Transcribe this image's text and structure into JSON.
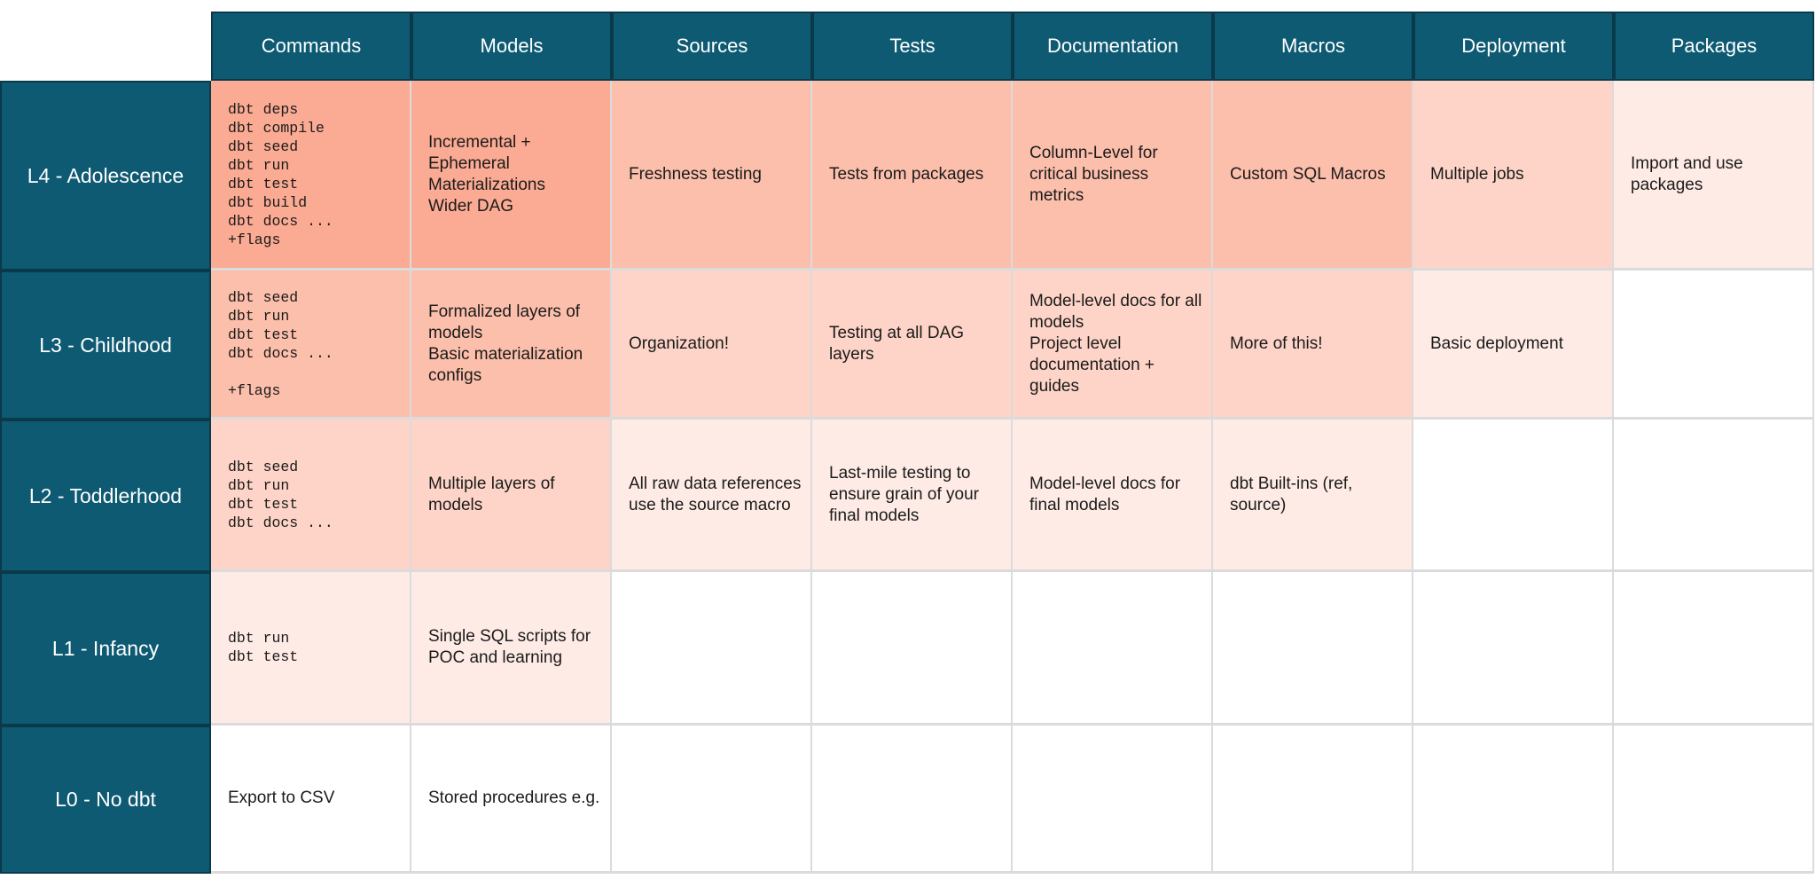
{
  "colors": {
    "header_bg": "#0E5A73",
    "header_border": "#0A3A4A",
    "grid_line": "#DBDBDB",
    "header_text": "#FFFFFF",
    "body_text": "#1B1B1B",
    "shades": [
      "#FBAB93",
      "#FCBFAB",
      "#FDD4C7",
      "#FEEBE5",
      "#FFFFFF"
    ]
  },
  "table": {
    "columns": [
      "Commands",
      "Models",
      "Sources",
      "Tests",
      "Documentation",
      "Macros",
      "Deployment",
      "Packages"
    ],
    "rows": [
      {
        "label": "L4 - Adolescence",
        "cells": [
          {
            "column": "Commands",
            "mono": true,
            "shade": 0,
            "text": "dbt deps\ndbt compile\ndbt seed\ndbt run\ndbt test\ndbt build\ndbt docs ...\n+flags"
          },
          {
            "column": "Models",
            "shade": 0,
            "text": "Incremental +\nEphemeral\nMaterializations\nWider DAG"
          },
          {
            "column": "Sources",
            "shade": 1,
            "text": "Freshness testing"
          },
          {
            "column": "Tests",
            "shade": 1,
            "text": "Tests from packages"
          },
          {
            "column": "Documentation",
            "shade": 1,
            "text": "Column-Level for critical business metrics"
          },
          {
            "column": "Macros",
            "shade": 1,
            "text": "Custom SQL Macros"
          },
          {
            "column": "Deployment",
            "shade": 2,
            "text": "Multiple jobs"
          },
          {
            "column": "Packages",
            "shade": 3,
            "text": "Import and use packages"
          }
        ]
      },
      {
        "label": "L3 - Childhood",
        "cells": [
          {
            "column": "Commands",
            "mono": true,
            "shade": 1,
            "text": "dbt seed\ndbt run\ndbt test\ndbt docs ...\n\n+flags"
          },
          {
            "column": "Models",
            "shade": 1,
            "text": "Formalized layers of models\nBasic materialization configs"
          },
          {
            "column": "Sources",
            "shade": 2,
            "text": "Organization!"
          },
          {
            "column": "Tests",
            "shade": 2,
            "text": "Testing at all DAG layers"
          },
          {
            "column": "Documentation",
            "shade": 2,
            "text": "Model-level docs for all models\nProject level documentation + guides"
          },
          {
            "column": "Macros",
            "shade": 2,
            "text": "More of this!"
          },
          {
            "column": "Deployment",
            "shade": 3,
            "text": "Basic deployment"
          },
          {
            "column": "Packages",
            "shade": 4,
            "text": ""
          }
        ]
      },
      {
        "label": "L2 - Toddlerhood",
        "cells": [
          {
            "column": "Commands",
            "mono": true,
            "shade": 2,
            "text": "dbt seed\ndbt run\ndbt test\ndbt docs ..."
          },
          {
            "column": "Models",
            "shade": 2,
            "text": "Multiple layers of models"
          },
          {
            "column": "Sources",
            "shade": 3,
            "text": "All raw data references use the source macro"
          },
          {
            "column": "Tests",
            "shade": 3,
            "text": "Last-mile testing to ensure grain of your final models"
          },
          {
            "column": "Documentation",
            "shade": 3,
            "text": "Model-level docs for final models"
          },
          {
            "column": "Macros",
            "shade": 3,
            "text": "dbt Built-ins (ref, source)"
          },
          {
            "column": "Deployment",
            "shade": 4,
            "text": ""
          },
          {
            "column": "Packages",
            "shade": 4,
            "text": ""
          }
        ]
      },
      {
        "label": "L1 - Infancy",
        "cells": [
          {
            "column": "Commands",
            "mono": true,
            "shade": 3,
            "text": "dbt run\ndbt test"
          },
          {
            "column": "Models",
            "shade": 3,
            "text": "Single SQL scripts for POC and learning"
          },
          {
            "column": "Sources",
            "shade": 4,
            "text": ""
          },
          {
            "column": "Tests",
            "shade": 4,
            "text": ""
          },
          {
            "column": "Documentation",
            "shade": 4,
            "text": ""
          },
          {
            "column": "Macros",
            "shade": 4,
            "text": ""
          },
          {
            "column": "Deployment",
            "shade": 4,
            "text": ""
          },
          {
            "column": "Packages",
            "shade": 4,
            "text": ""
          }
        ]
      },
      {
        "label": "L0 - No dbt",
        "cells": [
          {
            "column": "Commands",
            "shade": 4,
            "text": "Export to CSV"
          },
          {
            "column": "Models",
            "shade": 4,
            "text": "Stored procedures e.g."
          },
          {
            "column": "Sources",
            "shade": 4,
            "text": ""
          },
          {
            "column": "Tests",
            "shade": 4,
            "text": ""
          },
          {
            "column": "Documentation",
            "shade": 4,
            "text": ""
          },
          {
            "column": "Macros",
            "shade": 4,
            "text": ""
          },
          {
            "column": "Deployment",
            "shade": 4,
            "text": ""
          },
          {
            "column": "Packages",
            "shade": 4,
            "text": ""
          }
        ]
      }
    ]
  }
}
